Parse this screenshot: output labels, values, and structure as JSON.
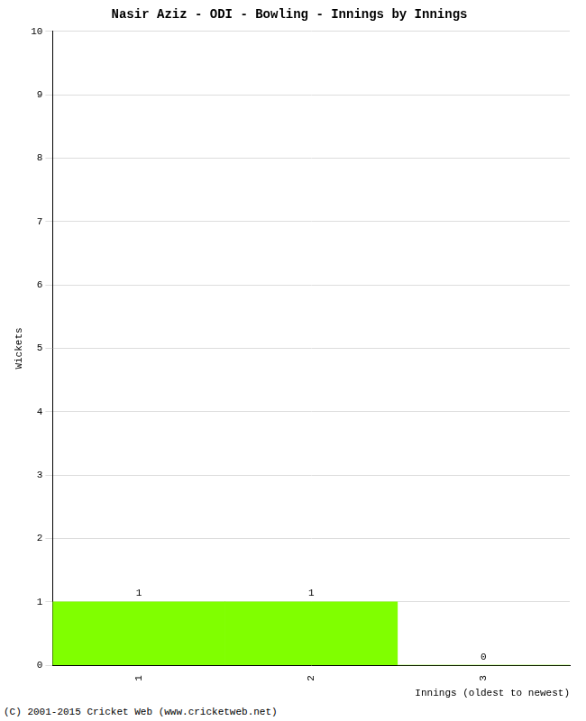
{
  "chart_data": {
    "type": "bar",
    "title": "Nasir Aziz - ODI - Bowling - Innings by Innings",
    "x_label": "Innings (oldest to newest)",
    "y_label": "Wickets",
    "categories": [
      "1",
      "2",
      "3"
    ],
    "values": [
      1,
      1,
      0
    ],
    "color": "#80ff00",
    "ylim": [
      0,
      10
    ],
    "yticks": [
      0,
      1,
      2,
      3,
      4,
      5,
      6,
      7,
      8,
      9,
      10
    ],
    "grid": true,
    "data_labels": true,
    "annotations": [
      "(C) 2001-2015 Cricket Web (www.cricketweb.net)"
    ]
  }
}
